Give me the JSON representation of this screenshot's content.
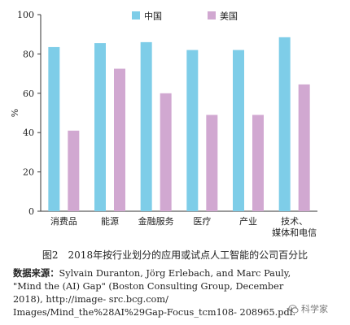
{
  "chart_data": {
    "type": "bar",
    "categories": [
      "消费品",
      "能源",
      "金融服务",
      "医疗",
      "产业",
      "技术、\n媒体和电信"
    ],
    "series": [
      {
        "name": "中国",
        "color": "#7ecde8",
        "values": [
          83.5,
          85.5,
          86,
          82,
          82,
          88.5
        ]
      },
      {
        "name": "美国",
        "color": "#d1a8d1",
        "values": [
          41,
          72.5,
          60,
          49,
          49,
          64.5
        ]
      }
    ],
    "ylabel": "%",
    "ylim": [
      0,
      100
    ],
    "yticks": [
      0,
      20,
      40,
      60,
      80,
      100
    ],
    "grid": false,
    "legend_position": "top-center"
  },
  "caption": "图2　2018年按行业划分的应用或试点人工智能的公司百分比",
  "source": {
    "label": "数据来源：",
    "text": "Sylvain Duranton, Jörg Erlebach, and Marc Pauly, \"Mind the (AI) Gap\" (Boston Consulting Group, December 2018), http://image- src.bcg.com/ Images/Mind_the%28AI%29Gap-Focus_tcm108- 208965.pdf."
  },
  "watermark": {
    "text": "科学家",
    "icon": "wechat-icon"
  }
}
